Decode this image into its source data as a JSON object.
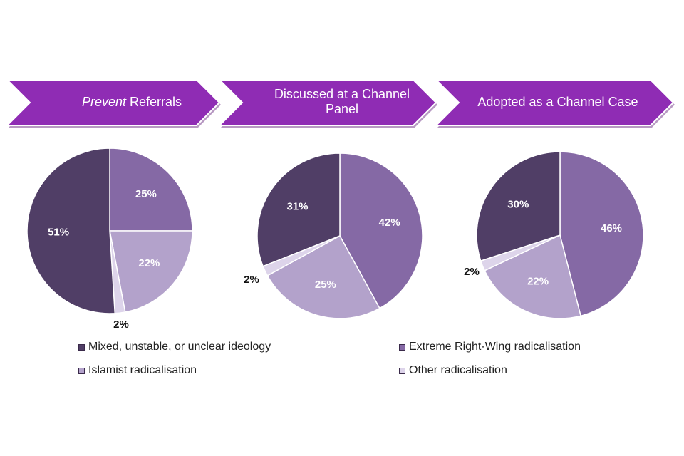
{
  "colors": {
    "chevron_fill": "#8f2cb4",
    "chevron_shadow": "#5f1c78",
    "mixed": "#503e66",
    "erw": "#8569a5",
    "islamist": "#b3a2cb",
    "other": "#ddd4ea"
  },
  "stages": [
    {
      "label_em": "Prevent",
      "label_rest": " Referrals"
    },
    {
      "label_em": "",
      "label_rest": "Discussed at a Channel Panel"
    },
    {
      "label_em": "",
      "label_rest": "Adopted as a Channel Case"
    }
  ],
  "chart_data": [
    {
      "type": "pie",
      "title": "Prevent Referrals",
      "slices": [
        {
          "name": "Extreme Right-Wing radicalisation",
          "value": 25,
          "label": "25%"
        },
        {
          "name": "Islamist radicalisation",
          "value": 22,
          "label": "22%"
        },
        {
          "name": "Other radicalisation",
          "value": 2,
          "label": "2%"
        },
        {
          "name": "Mixed, unstable, or unclear ideology",
          "value": 51,
          "label": "51%"
        }
      ]
    },
    {
      "type": "pie",
      "title": "Discussed at a Channel Panel",
      "slices": [
        {
          "name": "Extreme Right-Wing radicalisation",
          "value": 42,
          "label": "42%"
        },
        {
          "name": "Islamist radicalisation",
          "value": 25,
          "label": "25%"
        },
        {
          "name": "Other radicalisation",
          "value": 2,
          "label": "2%"
        },
        {
          "name": "Mixed, unstable, or unclear ideology",
          "value": 31,
          "label": "31%"
        }
      ]
    },
    {
      "type": "pie",
      "title": "Adopted as a Channel Case",
      "slices": [
        {
          "name": "Extreme Right-Wing radicalisation",
          "value": 46,
          "label": "46%"
        },
        {
          "name": "Islamist radicalisation",
          "value": 22,
          "label": "22%"
        },
        {
          "name": "Other radicalisation",
          "value": 2,
          "label": "2%"
        },
        {
          "name": "Mixed, unstable, or unclear ideology",
          "value": 30,
          "label": "30%"
        }
      ]
    }
  ],
  "legend": [
    {
      "label": "Mixed, unstable, or unclear ideology",
      "color": "#503e66"
    },
    {
      "label": "Extreme Right-Wing radicalisation",
      "color": "#8569a5"
    },
    {
      "label": "Islamist radicalisation",
      "color": "#b3a2cb"
    },
    {
      "label": "Other radicalisation",
      "color": "#ddd4ea"
    }
  ]
}
